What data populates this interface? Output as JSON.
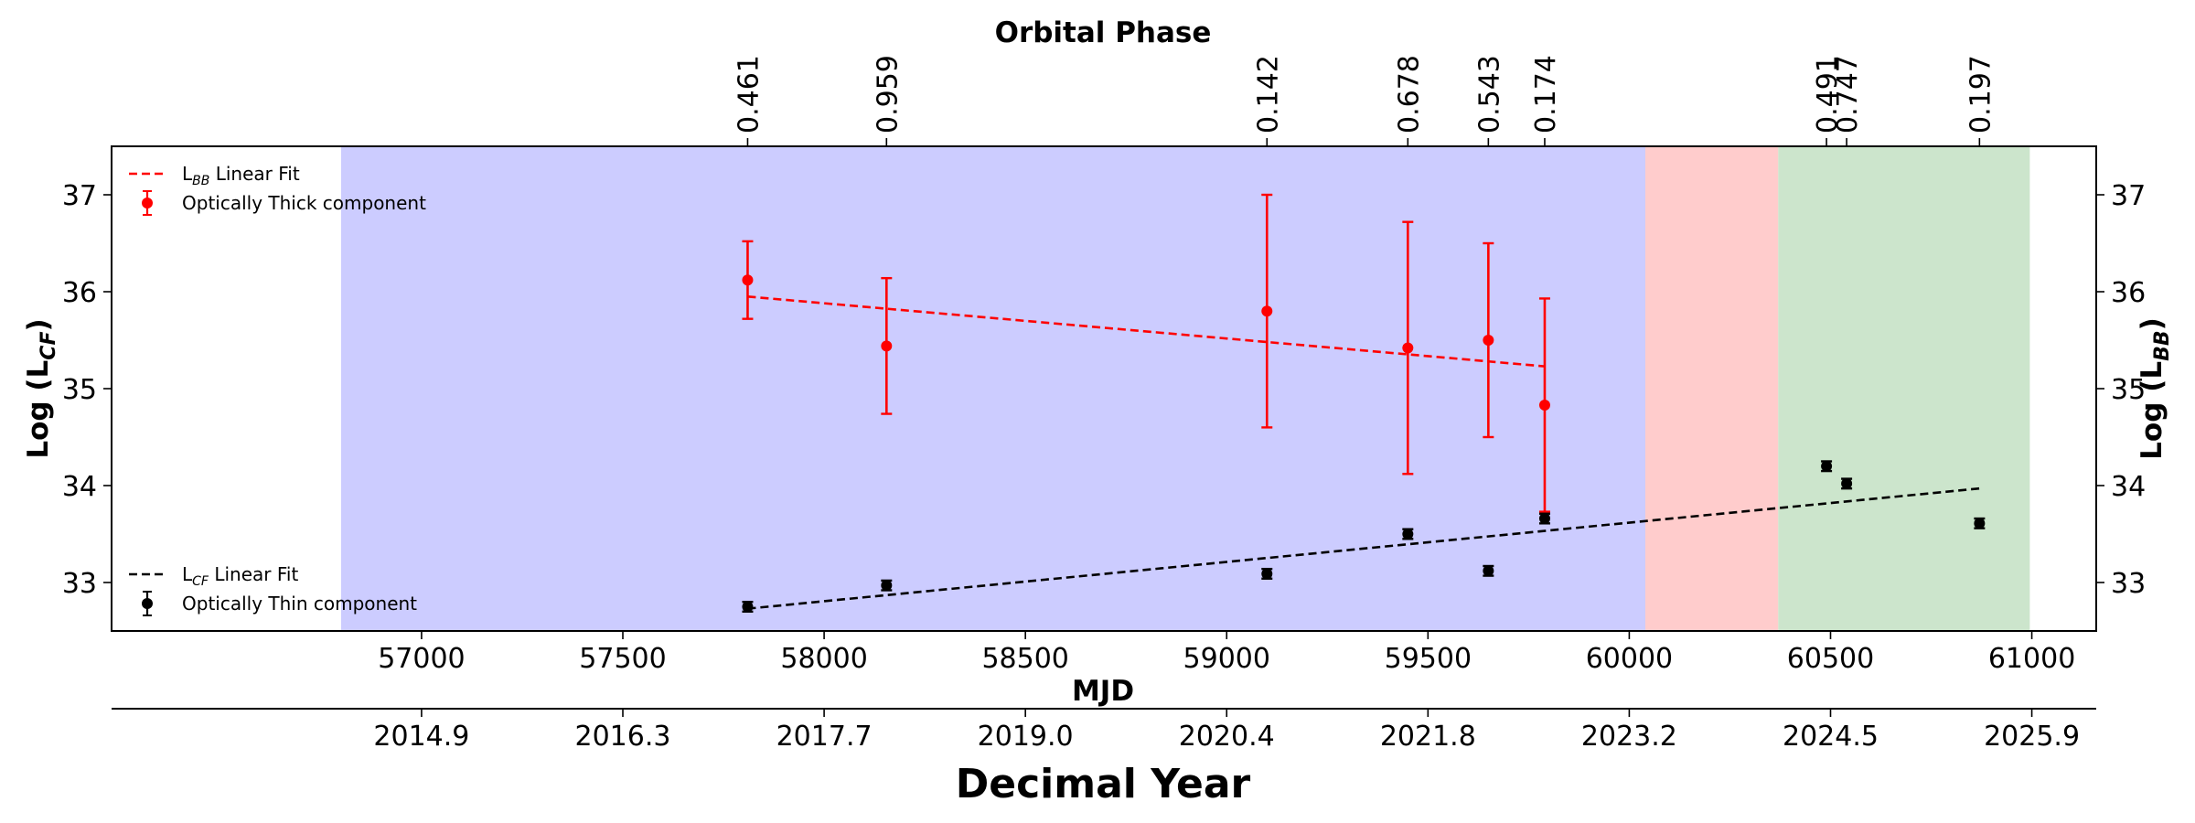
{
  "chart_data": {
    "type": "scatter",
    "titles": {
      "top": "Orbital Phase",
      "bottom": "Decimal Year",
      "mjd_label": "MJD",
      "ylabel_left_main": "Log (L",
      "ylabel_left_sub": "CF",
      "ylabel_left_close": ")",
      "ylabel_right_main": "Log (L",
      "ylabel_right_sub": "BB",
      "ylabel_right_close": ")"
    },
    "xlim": [
      56230,
      61160
    ],
    "ylim": [
      32.5,
      37.5
    ],
    "x_ticks": [
      {
        "value": 57000,
        "label": "57000"
      },
      {
        "value": 57500,
        "label": "57500"
      },
      {
        "value": 58000,
        "label": "58000"
      },
      {
        "value": 58500,
        "label": "58500"
      },
      {
        "value": 59000,
        "label": "59000"
      },
      {
        "value": 59500,
        "label": "59500"
      },
      {
        "value": 60000,
        "label": "60000"
      },
      {
        "value": 60500,
        "label": "60500"
      },
      {
        "value": 61000,
        "label": "61000"
      }
    ],
    "y_ticks": [
      {
        "value": 33,
        "label": "33"
      },
      {
        "value": 34,
        "label": "34"
      },
      {
        "value": 35,
        "label": "35"
      },
      {
        "value": 36,
        "label": "36"
      },
      {
        "value": 37,
        "label": "37"
      }
    ],
    "decimal_year_ticks": [
      {
        "value": 57000,
        "label": "2014.9"
      },
      {
        "value": 57500,
        "label": "2016.3"
      },
      {
        "value": 58000,
        "label": "2017.7"
      },
      {
        "value": 58500,
        "label": "2019.0"
      },
      {
        "value": 59000,
        "label": "2020.4"
      },
      {
        "value": 59500,
        "label": "2021.8"
      },
      {
        "value": 60000,
        "label": "2023.2"
      },
      {
        "value": 60500,
        "label": "2024.5"
      },
      {
        "value": 61000,
        "label": "2025.9"
      }
    ],
    "phase_ticks": [
      {
        "value": 57810,
        "label": "0.461"
      },
      {
        "value": 58155,
        "label": "0.959"
      },
      {
        "value": 59100,
        "label": "0.142"
      },
      {
        "value": 59450,
        "label": "0.678"
      },
      {
        "value": 59650,
        "label": "0.543"
      },
      {
        "value": 59790,
        "label": "0.174"
      },
      {
        "value": 60490,
        "label": "0.491"
      },
      {
        "value": 60540,
        "label": "0.747"
      },
      {
        "value": 60870,
        "label": "0.197"
      }
    ],
    "shaded_regions": [
      {
        "x0": 56800,
        "x1": 60040,
        "color": "#ccccff"
      },
      {
        "x0": 60040,
        "x1": 60370,
        "color": "#ffcccc"
      },
      {
        "x0": 60370,
        "x1": 60995,
        "color": "#cce5cc"
      }
    ],
    "series": [
      {
        "name": "Optically Thick component",
        "color": "#ff0000",
        "points": [
          {
            "x": 57810,
            "y": 36.12,
            "err": 0.4
          },
          {
            "x": 58155,
            "y": 35.44,
            "err": 0.7
          },
          {
            "x": 59100,
            "y": 35.8,
            "err": 1.2
          },
          {
            "x": 59450,
            "y": 35.42,
            "err": 1.3
          },
          {
            "x": 59650,
            "y": 35.5,
            "err": 1.0
          },
          {
            "x": 59790,
            "y": 34.83,
            "err": 1.1
          }
        ]
      },
      {
        "name": "Optically Thin component",
        "color": "#000000",
        "points": [
          {
            "x": 57810,
            "y": 32.75,
            "err": 0.05
          },
          {
            "x": 58155,
            "y": 32.97,
            "err": 0.05
          },
          {
            "x": 59100,
            "y": 33.09,
            "err": 0.05
          },
          {
            "x": 59450,
            "y": 33.5,
            "err": 0.05
          },
          {
            "x": 59650,
            "y": 33.12,
            "err": 0.05
          },
          {
            "x": 59790,
            "y": 33.66,
            "err": 0.05
          },
          {
            "x": 60490,
            "y": 34.2,
            "err": 0.05
          },
          {
            "x": 60540,
            "y": 34.02,
            "err": 0.05
          },
          {
            "x": 60870,
            "y": 33.61,
            "err": 0.05
          }
        ]
      }
    ],
    "fit_lines": [
      {
        "name": "LBB Linear Fit",
        "color": "#ff0000",
        "x0": 57810,
        "y0": 35.95,
        "x1": 59790,
        "y1": 35.23
      },
      {
        "name": "LCF Linear Fit",
        "color": "#000000",
        "x0": 57810,
        "y0": 32.73,
        "x1": 60870,
        "y1": 33.97
      }
    ],
    "legends": [
      {
        "position": "upper-left",
        "entries": [
          {
            "kind": "line",
            "color": "#ff0000",
            "main": "L",
            "sub": "BB",
            "rest": " Linear Fit"
          },
          {
            "kind": "errpoint",
            "color": "#ff0000",
            "main": "Optically Thick component",
            "sub": "",
            "rest": ""
          }
        ]
      },
      {
        "position": "lower-left",
        "entries": [
          {
            "kind": "line",
            "color": "#000000",
            "main": "L",
            "sub": "CF",
            "rest": " Linear Fit"
          },
          {
            "kind": "errpoint",
            "color": "#000000",
            "main": "Optically Thin component",
            "sub": "",
            "rest": ""
          }
        ]
      }
    ]
  }
}
